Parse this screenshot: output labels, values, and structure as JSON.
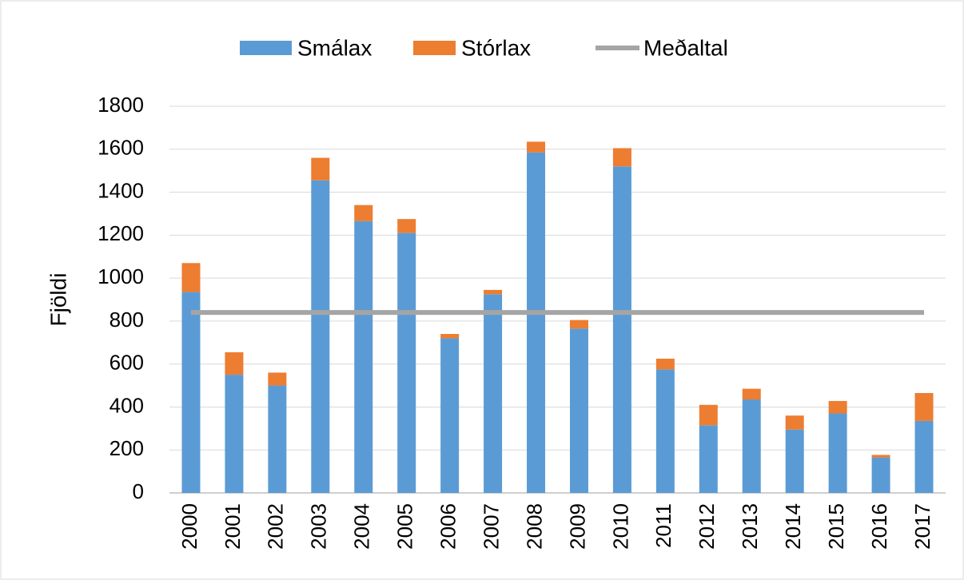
{
  "chart_data": {
    "type": "bar",
    "stacked": true,
    "categories": [
      "2000",
      "2001",
      "2002",
      "2003",
      "2004",
      "2005",
      "2006",
      "2007",
      "2008",
      "2009",
      "2010",
      "2011",
      "2012",
      "2013",
      "2014",
      "2015",
      "2016",
      "2017"
    ],
    "series": [
      {
        "name": "Smálax",
        "color": "#5b9bd5",
        "values": [
          935,
          550,
          500,
          1455,
          1265,
          1210,
          720,
          925,
          1585,
          765,
          1520,
          575,
          315,
          435,
          295,
          370,
          165,
          335
        ]
      },
      {
        "name": "Stórlax",
        "color": "#ed7d31",
        "values": [
          135,
          105,
          60,
          105,
          75,
          65,
          20,
          20,
          50,
          40,
          85,
          50,
          95,
          50,
          65,
          58,
          12,
          130
        ]
      },
      {
        "name": "Meðaltal",
        "color": "#a5a5a5",
        "type": "line",
        "values": [
          840,
          840,
          840,
          840,
          840,
          840,
          840,
          840,
          840,
          840,
          840,
          840,
          840,
          840,
          840,
          840,
          840,
          840
        ]
      }
    ],
    "ylabel": "Fjöldi",
    "ylim": [
      0,
      1800
    ],
    "yticks": [
      0,
      200,
      400,
      600,
      800,
      1000,
      1200,
      1400,
      1600,
      1800
    ],
    "grid": true,
    "legend": "top"
  }
}
